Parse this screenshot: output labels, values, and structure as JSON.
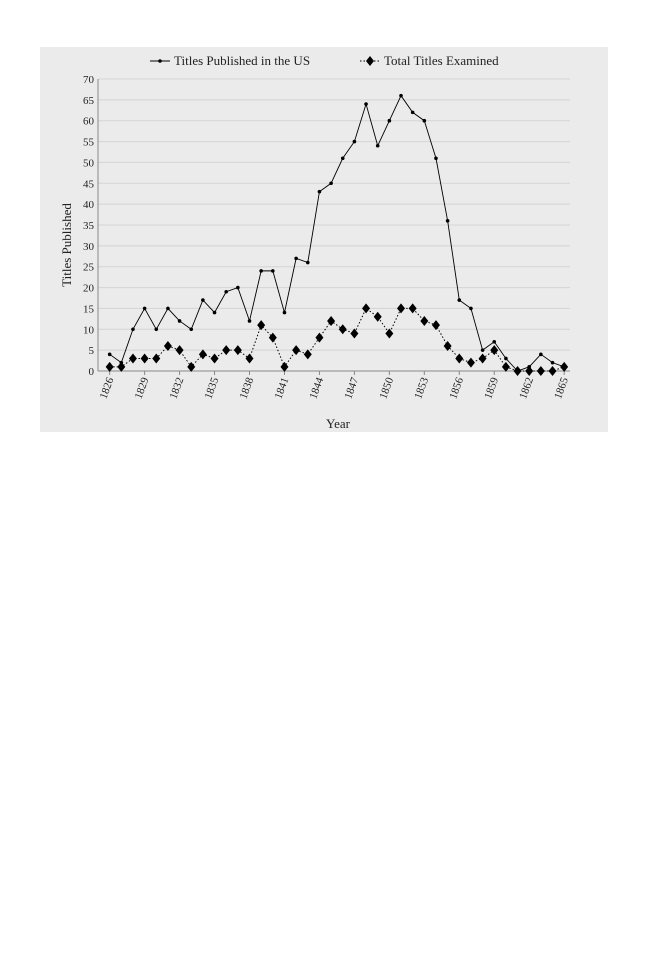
{
  "chart_data": {
    "type": "line",
    "x_label": "Year",
    "y_label": "Titles Published",
    "x": [
      1826,
      1827,
      1828,
      1829,
      1830,
      1831,
      1832,
      1833,
      1834,
      1835,
      1836,
      1837,
      1838,
      1839,
      1840,
      1841,
      1842,
      1843,
      1844,
      1845,
      1846,
      1847,
      1848,
      1849,
      1850,
      1851,
      1852,
      1853,
      1854,
      1855,
      1856,
      1857,
      1858,
      1859,
      1860,
      1861,
      1862,
      1863,
      1864,
      1865
    ],
    "series": [
      {
        "name": "Titles Published in the US",
        "color": "#000000",
        "marker": "dot",
        "line_style": "solid",
        "values": [
          4,
          2,
          10,
          15,
          10,
          15,
          12,
          10,
          17,
          14,
          19,
          20,
          12,
          24,
          24,
          14,
          27,
          26,
          43,
          45,
          51,
          55,
          64,
          54,
          60,
          66,
          62,
          60,
          51,
          36,
          17,
          15,
          5,
          7,
          3,
          0,
          1,
          4,
          2,
          1
        ]
      },
      {
        "name": "Total Titles Examined",
        "color": "#000000",
        "marker": "diamond",
        "line_style": "dotted",
        "values": [
          1,
          1,
          3,
          3,
          3,
          6,
          5,
          1,
          4,
          3,
          5,
          5,
          3,
          11,
          8,
          1,
          5,
          4,
          8,
          12,
          10,
          9,
          15,
          13,
          9,
          15,
          15,
          12,
          11,
          6,
          3,
          2,
          3,
          5,
          1,
          0,
          0,
          0,
          0,
          1
        ]
      }
    ],
    "xlim": [
      1825,
      1865.5
    ],
    "xticks": [
      1826,
      1829,
      1832,
      1835,
      1838,
      1841,
      1844,
      1847,
      1850,
      1853,
      1856,
      1859,
      1862,
      1865
    ],
    "ylim": [
      0,
      70
    ],
    "yticks": [
      0,
      5,
      10,
      15,
      20,
      25,
      30,
      35,
      40,
      45,
      50,
      55,
      60,
      65,
      70
    ],
    "grid": true,
    "legend": "top"
  }
}
